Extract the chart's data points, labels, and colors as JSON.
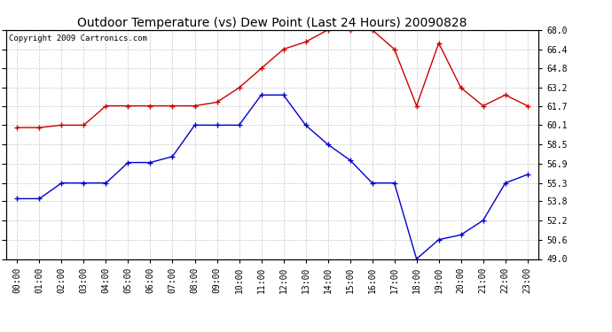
{
  "title": "Outdoor Temperature (vs) Dew Point (Last 24 Hours) 20090828",
  "copyright_text": "Copyright 2009 Cartronics.com",
  "hours": [
    "00:00",
    "01:00",
    "02:00",
    "03:00",
    "04:00",
    "05:00",
    "06:00",
    "07:00",
    "08:00",
    "09:00",
    "10:00",
    "11:00",
    "12:00",
    "13:00",
    "14:00",
    "15:00",
    "16:00",
    "17:00",
    "18:00",
    "19:00",
    "20:00",
    "21:00",
    "22:00",
    "23:00"
  ],
  "temp": [
    59.9,
    59.9,
    60.1,
    60.1,
    61.7,
    61.7,
    61.7,
    61.7,
    61.7,
    62.0,
    63.2,
    64.8,
    66.4,
    67.0,
    68.0,
    68.0,
    68.0,
    66.4,
    61.7,
    66.9,
    63.2,
    61.7,
    62.6,
    61.7
  ],
  "dew": [
    54.0,
    54.0,
    55.3,
    55.3,
    55.3,
    57.0,
    57.0,
    57.5,
    60.1,
    60.1,
    60.1,
    62.6,
    62.6,
    60.1,
    58.5,
    57.2,
    55.3,
    55.3,
    49.0,
    50.6,
    51.0,
    52.2,
    55.3,
    56.0
  ],
  "ylim_min": 49.0,
  "ylim_max": 68.0,
  "yticks": [
    49.0,
    50.6,
    52.2,
    53.8,
    55.3,
    56.9,
    58.5,
    60.1,
    61.7,
    63.2,
    64.8,
    66.4,
    68.0
  ],
  "temp_color": "#cc0000",
  "dew_color": "#0000cc",
  "bg_color": "#ffffff",
  "grid_color": "#c8c8c8",
  "title_fontsize": 10,
  "copyright_fontsize": 6.5,
  "tick_fontsize": 7,
  "marker_size": 4,
  "linewidth": 1.0
}
